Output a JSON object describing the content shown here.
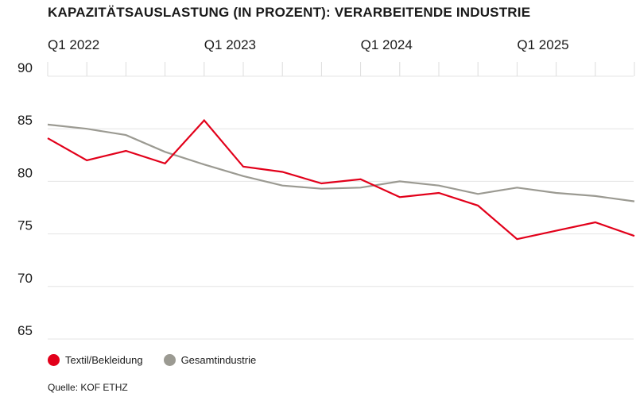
{
  "chart_data": {
    "type": "line",
    "title": "KAPAZITÄTSAUSLASTUNG (IN PROZENT): VERARBEITENDE INDUSTRIE",
    "x": [
      "Q1 2022",
      "Q2 2022",
      "Q3 2022",
      "Q4 2022",
      "Q1 2023",
      "Q2 2023",
      "Q3 2023",
      "Q4 2023",
      "Q1 2024",
      "Q2 2024",
      "Q3 2024",
      "Q4 2024",
      "Q1 2025",
      "Q2 2025",
      "Q3 2025",
      "Q4 2025"
    ],
    "x_tick_labels": [
      "Q1 2022",
      "Q1 2023",
      "Q1 2024",
      "Q1 2025"
    ],
    "ylim": [
      65,
      90
    ],
    "yticks": [
      90,
      85,
      80,
      75,
      70,
      65
    ],
    "series": [
      {
        "name": "Textil/Bekleidung",
        "color": "#e2001a",
        "values": [
          84.1,
          82.0,
          82.9,
          81.7,
          85.8,
          81.4,
          80.9,
          79.8,
          80.2,
          78.5,
          78.9,
          77.7,
          74.5,
          75.3,
          76.1,
          74.8
        ]
      },
      {
        "name": "Gesamtindustrie",
        "color": "#9b9a92",
        "values": [
          85.4,
          85.0,
          84.4,
          82.8,
          81.6,
          80.5,
          79.6,
          79.3,
          79.4,
          80.0,
          79.6,
          78.8,
          79.4,
          78.9,
          78.6,
          78.1
        ]
      }
    ],
    "grid": true,
    "legend_position": "bottom-left"
  },
  "source": "Quelle: KOF ETHZ"
}
